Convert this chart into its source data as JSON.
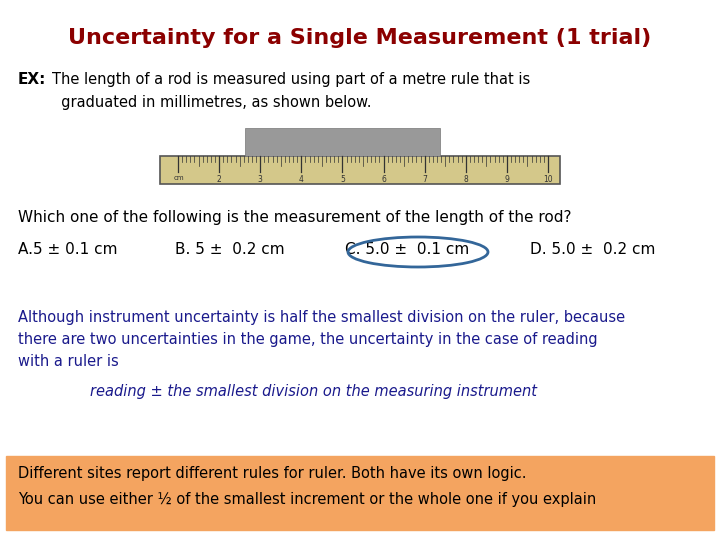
{
  "title": "Uncertainty for a Single Measurement (1 trial)",
  "title_color": "#8B0000",
  "title_fontsize": 16,
  "background_color": "#ffffff",
  "ex_label": "EX:",
  "ex_text_line1": "The length of a rod is measured using part of a metre rule that is",
  "ex_text_line2": "  graduated in millimetres, as shown below.",
  "question_text": "Which one of the following is the measurement of the length of the rod?",
  "options": [
    "A.5 ± 0.1 cm",
    "B. 5 ±  0.2 cm",
    "C. 5.0 ±  0.1 cm",
    "D. 5.0 ±  0.2 cm"
  ],
  "correct_option_index": 2,
  "body_text_line1": "Although instrument uncertainty is half the smallest division on the ruler, because",
  "body_text_line2": "there are two uncertainties in the game, the uncertainty in the case of reading",
  "body_text_line3": "with a ruler is",
  "italic_text": "reading ± the smallest division on the measuring instrument",
  "box_text_line1": "Different sites report different rules for ruler. Both have its own logic.",
  "box_text_line2": "You can use either ½ of the smallest increment or the whole one if you explain",
  "box_color": "#F4A460",
  "body_text_color": "#1a1a8c",
  "option_text_color": "#000000",
  "question_text_color": "#000000",
  "ruler_color": "#d4c88a",
  "rod_color": "#999999"
}
